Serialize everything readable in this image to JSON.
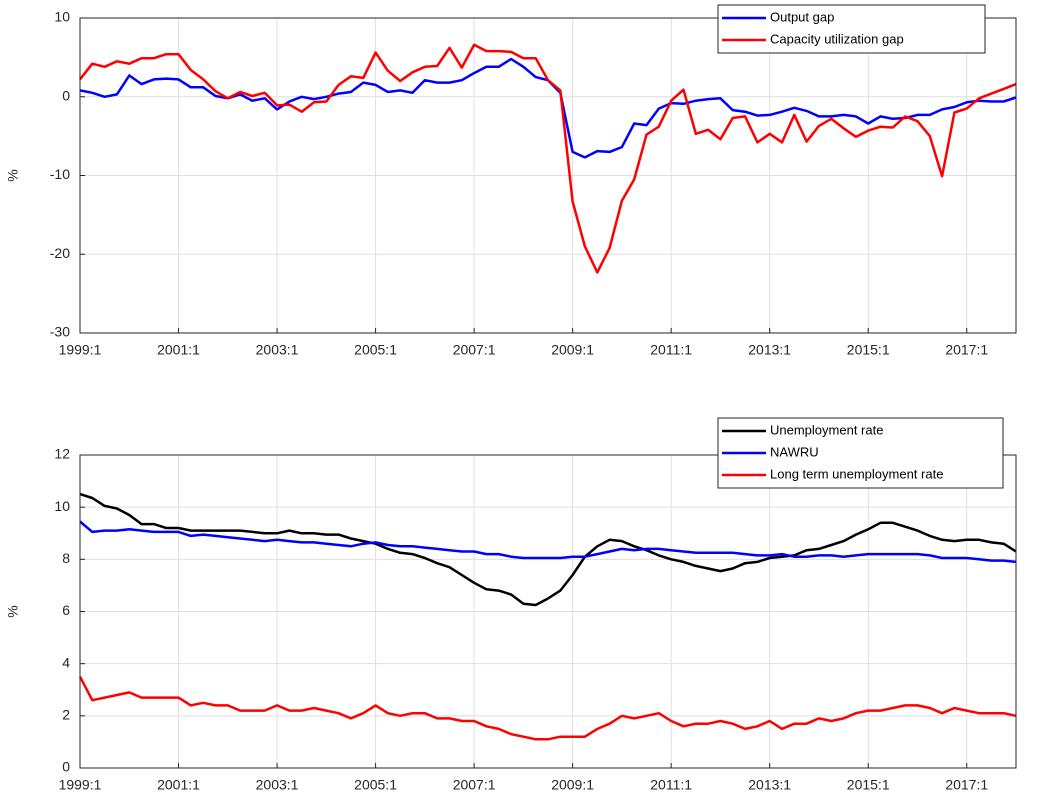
{
  "chart_data": [
    {
      "type": "line",
      "ylabel": "%",
      "ylim": [
        -30,
        10
      ],
      "yticks": [
        -30,
        -20,
        -10,
        0,
        10
      ],
      "grid": true,
      "legend": "upper right",
      "categories": [
        "1999:1",
        null,
        null,
        null,
        null,
        null,
        null,
        null,
        "2001:1",
        null,
        null,
        null,
        null,
        null,
        null,
        null,
        "2003:1",
        null,
        null,
        null,
        null,
        null,
        null,
        null,
        "2005:1",
        null,
        null,
        null,
        null,
        null,
        null,
        null,
        "2007:1",
        null,
        null,
        null,
        null,
        null,
        null,
        null,
        "2009:1",
        null,
        null,
        null,
        null,
        null,
        null,
        null,
        "2011:1",
        null,
        null,
        null,
        null,
        null,
        null,
        null,
        "2013:1",
        null,
        null,
        null,
        null,
        null,
        null,
        null,
        "2015:1",
        null,
        null,
        null,
        null,
        null,
        null,
        null,
        "2017:1",
        null,
        null,
        null,
        null
      ],
      "series": [
        {
          "name": "Output gap",
          "color": "#0000ff",
          "values": [
            0.8,
            0.5,
            0,
            0.3,
            2.7,
            1.6,
            2.2,
            2.3,
            2.2,
            1.2,
            1.2,
            0.1,
            -0.2,
            0.3,
            -0.5,
            -0.2,
            -1.6,
            -0.6,
            0,
            -0.3,
            0,
            0.4,
            0.6,
            1.8,
            1.5,
            0.6,
            0.8,
            0.5,
            2.1,
            1.8,
            1.8,
            2.1,
            3,
            3.8,
            3.8,
            4.8,
            3.8,
            2.5,
            2.1,
            0.5,
            -7,
            -7.7,
            -6.9,
            -7,
            -6.4,
            -3.4,
            -3.6,
            -1.5,
            -0.8,
            -0.9,
            -0.5,
            -0.3,
            -0.2,
            -1.7,
            -1.9,
            -2.4,
            -2.3,
            -1.9,
            -1.4,
            -1.8,
            -2.5,
            -2.5,
            -2.3,
            -2.5,
            -3.4,
            -2.5,
            -2.8,
            -2.7,
            -2.3,
            -2.3,
            -1.6,
            -1.3,
            -0.7,
            -0.5,
            -0.6,
            -0.6,
            -0.1
          ]
        },
        {
          "name": "Capacity utilization gap",
          "color": "#ff0000",
          "values": [
            2.2,
            4.2,
            3.8,
            4.5,
            4.2,
            4.9,
            4.9,
            5.4,
            5.4,
            3.4,
            2.2,
            0.7,
            -0.2,
            0.6,
            0.1,
            0.5,
            -1.1,
            -1,
            -1.9,
            -0.7,
            -0.6,
            1.5,
            2.6,
            2.4,
            5.6,
            3.3,
            2,
            3.1,
            3.8,
            3.9,
            6.2,
            3.7,
            6.6,
            5.8,
            5.8,
            5.7,
            4.9,
            4.9,
            2.1,
            0.8,
            -13.3,
            -19,
            -22.3,
            -19.2,
            -13.2,
            -10.5,
            -4.8,
            -3.8,
            -0.5,
            0.9,
            -4.7,
            -4.2,
            -5.4,
            -2.7,
            -2.5,
            -5.8,
            -4.7,
            -5.8,
            -2.3,
            -5.7,
            -3.7,
            -2.8,
            -4,
            -5.1,
            -4.3,
            -3.8,
            -3.9,
            -2.5,
            -3.1,
            -5,
            -10.1,
            -2,
            -1.5,
            -0.2,
            0.4,
            1,
            1.6
          ]
        }
      ]
    },
    {
      "type": "line",
      "ylabel": "%",
      "ylim": [
        0,
        12
      ],
      "yticks": [
        0,
        2,
        4,
        6,
        8,
        10,
        12
      ],
      "grid": true,
      "legend": "upper right",
      "categories": [
        "1999:1",
        null,
        null,
        null,
        null,
        null,
        null,
        null,
        "2001:1",
        null,
        null,
        null,
        null,
        null,
        null,
        null,
        "2003:1",
        null,
        null,
        null,
        null,
        null,
        null,
        null,
        "2005:1",
        null,
        null,
        null,
        null,
        null,
        null,
        null,
        "2007:1",
        null,
        null,
        null,
        null,
        null,
        null,
        null,
        "2009:1",
        null,
        null,
        null,
        null,
        null,
        null,
        null,
        "2011:1",
        null,
        null,
        null,
        null,
        null,
        null,
        null,
        "2013:1",
        null,
        null,
        null,
        null,
        null,
        null,
        null,
        "2015:1",
        null,
        null,
        null,
        null,
        null,
        null,
        null,
        "2017:1",
        null,
        null,
        null,
        null
      ],
      "series": [
        {
          "name": "Unemployment rate",
          "color": "#000000",
          "values": [
            10.5,
            10.35,
            10.05,
            9.95,
            9.7,
            9.35,
            9.35,
            9.2,
            9.2,
            9.1,
            9.1,
            9.1,
            9.1,
            9.1,
            9.05,
            9,
            9,
            9.1,
            9,
            9,
            8.95,
            8.95,
            8.8,
            8.7,
            8.6,
            8.4,
            8.25,
            8.2,
            8.05,
            7.85,
            7.7,
            7.4,
            7.1,
            6.85,
            6.8,
            6.65,
            6.3,
            6.25,
            6.5,
            6.8,
            7.4,
            8.1,
            8.5,
            8.75,
            8.7,
            8.5,
            8.35,
            8.15,
            8,
            7.9,
            7.75,
            7.65,
            7.55,
            7.65,
            7.85,
            7.9,
            8.05,
            8.1,
            8.15,
            8.35,
            8.4,
            8.55,
            8.7,
            8.95,
            9.15,
            9.4,
            9.4,
            9.25,
            9.1,
            8.9,
            8.75,
            8.7,
            8.75,
            8.75,
            8.65,
            8.6,
            8.3
          ]
        },
        {
          "name": "NAWRU",
          "color": "#0000ff",
          "values": [
            9.45,
            9.05,
            9.1,
            9.1,
            9.15,
            9.1,
            9.05,
            9.05,
            9.05,
            8.9,
            8.95,
            8.9,
            8.85,
            8.8,
            8.75,
            8.7,
            8.75,
            8.7,
            8.65,
            8.65,
            8.6,
            8.55,
            8.5,
            8.6,
            8.65,
            8.55,
            8.5,
            8.5,
            8.45,
            8.4,
            8.35,
            8.3,
            8.3,
            8.2,
            8.2,
            8.1,
            8.05,
            8.05,
            8.05,
            8.05,
            8.1,
            8.1,
            8.2,
            8.3,
            8.4,
            8.35,
            8.4,
            8.4,
            8.35,
            8.3,
            8.25,
            8.25,
            8.25,
            8.25,
            8.2,
            8.15,
            8.15,
            8.2,
            8.1,
            8.1,
            8.15,
            8.15,
            8.1,
            8.15,
            8.2,
            8.2,
            8.2,
            8.2,
            8.2,
            8.15,
            8.05,
            8.05,
            8.05,
            8,
            7.95,
            7.95,
            7.9
          ]
        },
        {
          "name": "Long term unemployment rate",
          "color": "#ff0000",
          "values": [
            3.5,
            2.6,
            2.7,
            2.8,
            2.9,
            2.7,
            2.7,
            2.7,
            2.7,
            2.4,
            2.5,
            2.4,
            2.4,
            2.2,
            2.2,
            2.2,
            2.4,
            2.2,
            2.2,
            2.3,
            2.2,
            2.1,
            1.9,
            2.1,
            2.4,
            2.1,
            2,
            2.1,
            2.1,
            1.9,
            1.9,
            1.8,
            1.8,
            1.6,
            1.5,
            1.3,
            1.2,
            1.1,
            1.1,
            1.2,
            1.2,
            1.2,
            1.5,
            1.7,
            2,
            1.9,
            2,
            2.1,
            1.8,
            1.6,
            1.7,
            1.7,
            1.8,
            1.7,
            1.5,
            1.6,
            1.8,
            1.5,
            1.7,
            1.7,
            1.9,
            1.8,
            1.9,
            2.1,
            2.2,
            2.2,
            2.3,
            2.4,
            2.4,
            2.3,
            2.1,
            2.3,
            2.2,
            2.1,
            2.1,
            2.1,
            2
          ]
        }
      ]
    }
  ]
}
